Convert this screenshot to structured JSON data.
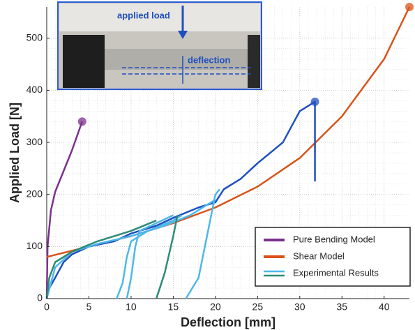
{
  "chart_data": {
    "type": "line",
    "x_label": "Deflection [mm]",
    "y_label": "Applied Load [N]",
    "xlim": [
      0,
      43
    ],
    "ylim": [
      0,
      560
    ],
    "xticks": [
      0,
      5,
      10,
      15,
      20,
      25,
      30,
      35,
      40
    ],
    "yticks": [
      0,
      100,
      200,
      300,
      400,
      500
    ],
    "grid": true,
    "legend": "lower right",
    "annotations": [
      "applied load",
      "deflection"
    ],
    "series": [
      {
        "name": "Pure Bending Model",
        "color": "#7e2f8e",
        "marker": true,
        "x": [
          0,
          0.1,
          0.5,
          1,
          2,
          3,
          4.2
        ],
        "values": [
          0,
          100,
          170,
          205,
          245,
          285,
          340
        ]
      },
      {
        "name": "Shear Model",
        "color": "#d95319",
        "marker": true,
        "x": [
          0,
          5,
          10,
          15,
          20,
          25,
          30,
          35,
          40,
          43
        ],
        "values": [
          80,
          100,
          120,
          145,
          175,
          215,
          270,
          350,
          460,
          560
        ]
      },
      {
        "name": "Experimental Results",
        "color": "#4db8e8",
        "marker": false,
        "lines": [
          {
            "color": "#1f4fbf",
            "marker": true,
            "x": [
              0,
              0.3,
              1,
              2,
              3,
              5,
              8,
              10,
              13,
              15,
              18,
              20,
              21,
              23,
              25,
              28,
              30,
              31,
              31.8,
              31.8
            ],
            "values": [
              0,
              20,
              40,
              70,
              85,
              100,
              110,
              125,
              140,
              155,
              175,
              185,
              210,
              230,
              260,
              300,
              360,
              370,
              378,
              225
            ]
          },
          {
            "color": "#4db8e8",
            "marker": false,
            "x": [
              0,
              1,
              3,
              6,
              10,
              14,
              17,
              20
            ],
            "values": [
              0,
              60,
              90,
              105,
              120,
              140,
              160,
              190
            ]
          },
          {
            "color": "#2e8b77",
            "marker": false,
            "x": [
              0,
              0.3,
              1,
              3,
              6,
              10,
              13
            ],
            "values": [
              0,
              40,
              70,
              90,
              110,
              130,
              150
            ]
          },
          {
            "color": "#4db8e8",
            "marker": false,
            "x": [
              8.3,
              9,
              9.5,
              10,
              12,
              15,
              16
            ],
            "values": [
              0,
              30,
              80,
              110,
              130,
              150,
              160
            ]
          },
          {
            "color": "#4db8e8",
            "marker": false,
            "x": [
              9.5,
              10,
              10.5,
              11,
              13,
              15
            ],
            "values": [
              0,
              40,
              100,
              130,
              145,
              160
            ]
          },
          {
            "color": "#2e8b77",
            "marker": false,
            "x": [
              13,
              14,
              15,
              15.5
            ],
            "values": [
              0,
              50,
              120,
              160
            ]
          },
          {
            "color": "#4db8e8",
            "marker": false,
            "x": [
              16.5,
              18,
              19,
              20,
              20.5
            ],
            "values": [
              0,
              40,
              120,
              200,
              210
            ]
          }
        ]
      }
    ]
  }
}
